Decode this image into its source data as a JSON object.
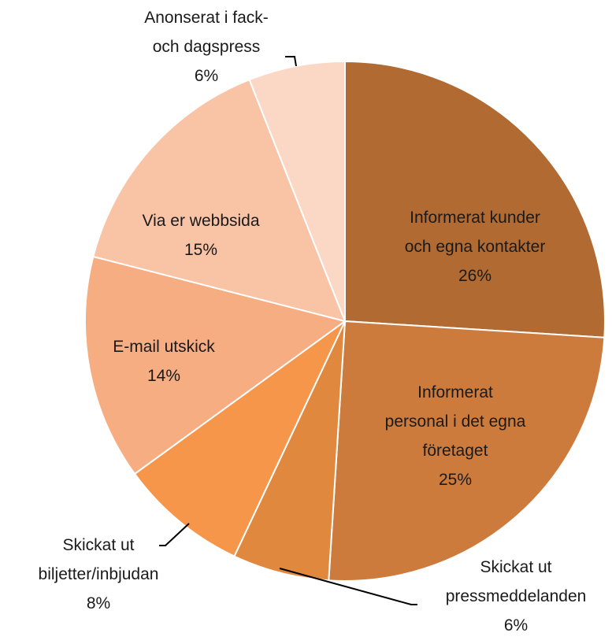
{
  "chart_data": {
    "type": "pie",
    "categories": [
      "Informerat kunder\noch egna kontakter",
      "Informerat\npersonal i det egna\nföretaget",
      "Skickat ut\npressmeddelanden",
      "Skickat ut\nbiljetter/inbjudan",
      "E-mail utskick",
      "Via er webbsida",
      "Anonserat i fack-\noch dagspress"
    ],
    "values": [
      26,
      25,
      6,
      8,
      14,
      15,
      6
    ],
    "value_labels": [
      "26%",
      "25%",
      "6%",
      "8%",
      "14%",
      "15%",
      "6%"
    ],
    "colors": [
      "#b06a32",
      "#cd7b3c",
      "#e0883e",
      "#f5964a",
      "#f7ad82",
      "#f9c3a6",
      "#fbd7c6"
    ]
  }
}
